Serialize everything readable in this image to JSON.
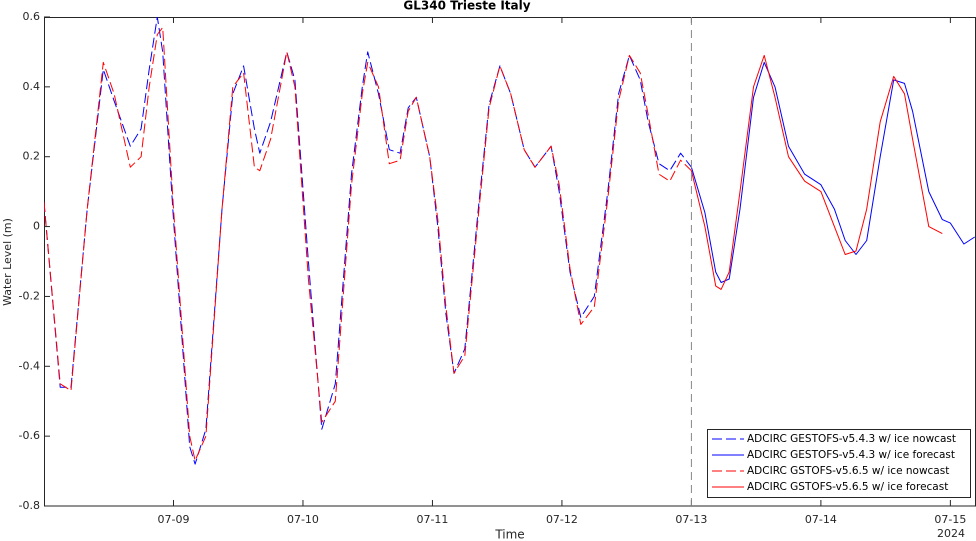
{
  "chart_data": {
    "type": "line",
    "title": "GL340 Trieste Italy",
    "xlabel": "Time",
    "ylabel": "Water Level (m)",
    "x_year_label": "2024",
    "xlim": [
      "2024-07-08T00:00",
      "2024-07-15T04:45"
    ],
    "xticks": [
      {
        "value": "2024-07-09T00:00",
        "label": "07-09"
      },
      {
        "value": "2024-07-10T00:00",
        "label": "07-10"
      },
      {
        "value": "2024-07-11T00:00",
        "label": "07-11"
      },
      {
        "value": "2024-07-12T00:00",
        "label": "07-12"
      },
      {
        "value": "2024-07-13T00:00",
        "label": "07-13"
      },
      {
        "value": "2024-07-14T00:00",
        "label": "07-14"
      },
      {
        "value": "2024-07-15T00:00",
        "label": "07-15"
      }
    ],
    "ylim": [
      -0.8,
      0.6
    ],
    "yticks": [
      -0.8,
      -0.6,
      -0.4,
      -0.2,
      0,
      0.2,
      0.4,
      0.6
    ],
    "grid": false,
    "vline": "2024-07-13T00:00",
    "legend": "southeast",
    "series": [
      {
        "name": "ADCIRC GESTOFS-v5.4.3 w/ ice nowcast",
        "color": "#0000ff",
        "dash": true,
        "x": [
          "2024-07-08T00:00",
          "2024-07-08T03:00",
          "2024-07-08T05:00",
          "2024-07-08T08:00",
          "2024-07-08T11:00",
          "2024-07-08T13:00",
          "2024-07-08T16:00",
          "2024-07-08T18:00",
          "2024-07-08T19:30",
          "2024-07-08T21:00",
          "2024-07-08T22:00",
          "2024-07-09T00:00",
          "2024-07-09T03:00",
          "2024-07-09T04:00",
          "2024-07-09T06:00",
          "2024-07-09T09:00",
          "2024-07-09T11:00",
          "2024-07-09T13:00",
          "2024-07-09T15:00",
          "2024-07-09T16:00",
          "2024-07-09T18:00",
          "2024-07-09T21:00",
          "2024-07-09T22:30",
          "2024-07-10T01:00",
          "2024-07-10T03:30",
          "2024-07-10T06:00",
          "2024-07-10T09:00",
          "2024-07-10T11:00",
          "2024-07-10T12:00",
          "2024-07-10T14:00",
          "2024-07-10T16:00",
          "2024-07-10T18:00",
          "2024-07-10T19:30",
          "2024-07-10T21:00",
          "2024-07-10T23:30",
          "2024-07-11T01:00",
          "2024-07-11T02:30",
          "2024-07-11T04:00",
          "2024-07-11T06:00",
          "2024-07-11T08:30",
          "2024-07-11T10:30",
          "2024-07-11T12:30",
          "2024-07-11T14:30",
          "2024-07-11T17:00",
          "2024-07-11T19:00",
          "2024-07-11T22:00",
          "2024-07-11T23:30",
          "2024-07-12T01:30",
          "2024-07-12T03:30",
          "2024-07-12T06:00",
          "2024-07-12T08:30",
          "2024-07-12T10:30",
          "2024-07-12T12:30",
          "2024-07-12T14:30",
          "2024-07-12T16:00",
          "2024-07-12T18:00",
          "2024-07-12T20:00",
          "2024-07-12T22:00",
          "2024-07-13T00:00"
        ],
        "values": [
          0.07,
          -0.46,
          -0.46,
          0.05,
          0.45,
          0.36,
          0.23,
          0.28,
          0.45,
          0.6,
          0.5,
          0.02,
          -0.63,
          -0.68,
          -0.58,
          0.05,
          0.38,
          0.46,
          0.28,
          0.21,
          0.3,
          0.5,
          0.42,
          -0.1,
          -0.58,
          -0.45,
          0.15,
          0.4,
          0.5,
          0.38,
          0.22,
          0.21,
          0.34,
          0.37,
          0.2,
          0.0,
          -0.25,
          -0.42,
          -0.35,
          0.05,
          0.35,
          0.46,
          0.38,
          0.22,
          0.17,
          0.23,
          0.1,
          -0.13,
          -0.26,
          -0.2,
          0.1,
          0.38,
          0.49,
          0.42,
          0.3,
          0.18,
          0.16,
          0.21,
          0.17
        ]
      },
      {
        "name": "ADCIRC GESTOFS-v5.4.3 w/ ice forecast",
        "color": "#0000ff",
        "dash": false,
        "x": [
          "2024-07-13T00:00",
          "2024-07-13T02:30",
          "2024-07-13T04:30",
          "2024-07-13T05:30",
          "2024-07-13T07:00",
          "2024-07-13T09:00",
          "2024-07-13T11:30",
          "2024-07-13T13:30",
          "2024-07-13T15:30",
          "2024-07-13T18:00",
          "2024-07-13T21:00",
          "2024-07-14T00:00",
          "2024-07-14T02:30",
          "2024-07-14T04:30",
          "2024-07-14T06:30",
          "2024-07-14T08:30",
          "2024-07-14T11:00",
          "2024-07-14T13:30",
          "2024-07-14T15:30",
          "2024-07-14T17:00",
          "2024-07-14T20:00",
          "2024-07-14T22:30",
          "2024-07-15T00:00",
          "2024-07-15T02:30",
          "2024-07-15T04:30"
        ],
        "values": [
          0.17,
          0.04,
          -0.13,
          -0.16,
          -0.15,
          0.05,
          0.37,
          0.47,
          0.4,
          0.23,
          0.15,
          0.12,
          0.05,
          -0.04,
          -0.08,
          -0.04,
          0.2,
          0.42,
          0.41,
          0.33,
          0.1,
          0.02,
          0.01,
          -0.05,
          -0.03
        ]
      },
      {
        "name": "ADCIRC GSTOFS-v5.6.5 w/ ice nowcast",
        "color": "#ff0000",
        "dash": true,
        "x": [
          "2024-07-08T00:00",
          "2024-07-08T03:00",
          "2024-07-08T05:00",
          "2024-07-08T08:00",
          "2024-07-08T11:00",
          "2024-07-08T13:00",
          "2024-07-08T16:00",
          "2024-07-08T18:00",
          "2024-07-08T19:30",
          "2024-07-08T21:00",
          "2024-07-08T22:00",
          "2024-07-09T00:00",
          "2024-07-09T03:00",
          "2024-07-09T04:00",
          "2024-07-09T06:00",
          "2024-07-09T09:00",
          "2024-07-09T11:00",
          "2024-07-09T13:00",
          "2024-07-09T15:00",
          "2024-07-09T16:00",
          "2024-07-09T18:00",
          "2024-07-09T21:00",
          "2024-07-09T22:30",
          "2024-07-10T01:00",
          "2024-07-10T03:30",
          "2024-07-10T06:00",
          "2024-07-10T09:00",
          "2024-07-10T11:00",
          "2024-07-10T12:00",
          "2024-07-10T14:00",
          "2024-07-10T16:00",
          "2024-07-10T18:00",
          "2024-07-10T19:30",
          "2024-07-10T21:00",
          "2024-07-10T23:30",
          "2024-07-11T01:00",
          "2024-07-11T02:30",
          "2024-07-11T04:00",
          "2024-07-11T06:00",
          "2024-07-11T08:30",
          "2024-07-11T10:30",
          "2024-07-11T12:30",
          "2024-07-11T14:30",
          "2024-07-11T17:00",
          "2024-07-11T19:00",
          "2024-07-11T22:00",
          "2024-07-11T23:30",
          "2024-07-12T01:30",
          "2024-07-12T03:30",
          "2024-07-12T06:00",
          "2024-07-12T08:30",
          "2024-07-12T10:30",
          "2024-07-12T12:30",
          "2024-07-12T14:30",
          "2024-07-12T16:00",
          "2024-07-12T18:00",
          "2024-07-12T20:00",
          "2024-07-12T22:00",
          "2024-07-13T00:00"
        ],
        "values": [
          0.07,
          -0.45,
          -0.47,
          0.05,
          0.47,
          0.38,
          0.17,
          0.2,
          0.4,
          0.55,
          0.57,
          0.05,
          -0.6,
          -0.67,
          -0.6,
          0.05,
          0.4,
          0.44,
          0.17,
          0.16,
          0.25,
          0.5,
          0.4,
          -0.15,
          -0.56,
          -0.5,
          0.12,
          0.38,
          0.47,
          0.4,
          0.18,
          0.19,
          0.33,
          0.37,
          0.2,
          0.02,
          -0.23,
          -0.42,
          -0.37,
          0.03,
          0.34,
          0.46,
          0.38,
          0.22,
          0.17,
          0.23,
          0.12,
          -0.12,
          -0.28,
          -0.23,
          0.08,
          0.36,
          0.49,
          0.44,
          0.32,
          0.15,
          0.13,
          0.19,
          0.16
        ]
      },
      {
        "name": "ADCIRC GSTOFS-v5.6.5 w/ ice forecast",
        "color": "#ff0000",
        "dash": false,
        "x": [
          "2024-07-13T00:00",
          "2024-07-13T02:30",
          "2024-07-13T04:30",
          "2024-07-13T05:30",
          "2024-07-13T07:00",
          "2024-07-13T09:00",
          "2024-07-13T11:30",
          "2024-07-13T13:30",
          "2024-07-13T15:30",
          "2024-07-13T18:00",
          "2024-07-13T21:00",
          "2024-07-14T00:00",
          "2024-07-14T02:30",
          "2024-07-14T04:30",
          "2024-07-14T06:30",
          "2024-07-14T08:30",
          "2024-07-14T11:00",
          "2024-07-14T13:30",
          "2024-07-14T15:30",
          "2024-07-14T17:00",
          "2024-07-14T20:00",
          "2024-07-14T22:30"
        ],
        "values": [
          0.16,
          0.0,
          -0.17,
          -0.18,
          -0.13,
          0.1,
          0.4,
          0.49,
          0.37,
          0.2,
          0.13,
          0.1,
          0.0,
          -0.08,
          -0.07,
          0.05,
          0.3,
          0.43,
          0.38,
          0.25,
          0.0,
          -0.02
        ]
      }
    ]
  }
}
